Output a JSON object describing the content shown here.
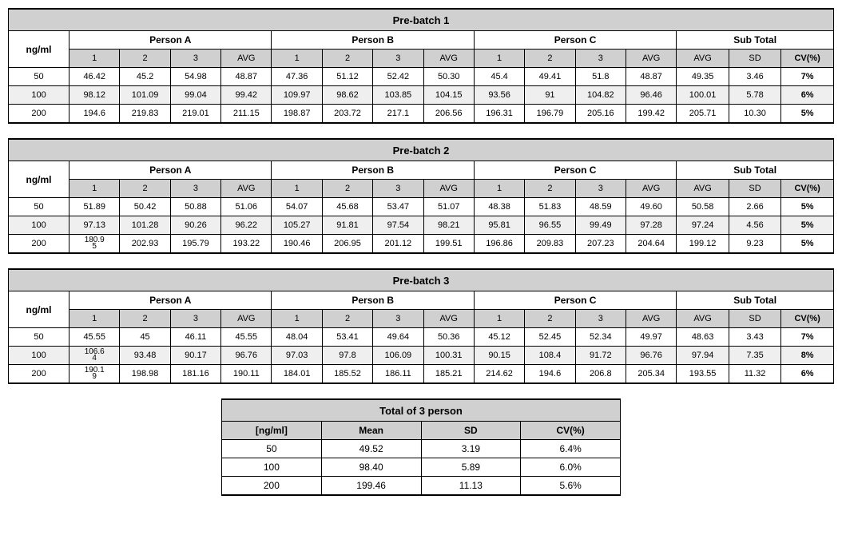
{
  "batches": [
    {
      "title": "Pre-batch 1",
      "rows": [
        {
          "ng": "50",
          "a": [
            "46.42",
            "45.2",
            "54.98",
            "48.87"
          ],
          "b": [
            "47.36",
            "51.12",
            "52.42",
            "50.30"
          ],
          "c": [
            "45.4",
            "49.41",
            "51.8",
            "48.87"
          ],
          "sub": [
            "49.35",
            "3.46",
            "7%"
          ],
          "shaded": false
        },
        {
          "ng": "100",
          "a": [
            "98.12",
            "101.09",
            "99.04",
            "99.42"
          ],
          "b": [
            "109.97",
            "98.62",
            "103.85",
            "104.15"
          ],
          "c": [
            "93.56",
            "91",
            "104.82",
            "96.46"
          ],
          "sub": [
            "100.01",
            "5.78",
            "6%"
          ],
          "shaded": true
        },
        {
          "ng": "200",
          "a": [
            "194.6",
            "219.83",
            "219.01",
            "211.15"
          ],
          "b": [
            "198.87",
            "203.72",
            "217.1",
            "206.56"
          ],
          "c": [
            "196.31",
            "196.79",
            "205.16",
            "199.42"
          ],
          "sub": [
            "205.71",
            "10.30",
            "5%"
          ],
          "shaded": false
        }
      ]
    },
    {
      "title": "Pre-batch 2",
      "rows": [
        {
          "ng": "50",
          "a": [
            "51.89",
            "50.42",
            "50.88",
            "51.06"
          ],
          "b": [
            "54.07",
            "45.68",
            "53.47",
            "51.07"
          ],
          "c": [
            "48.38",
            "51.83",
            "48.59",
            "49.60"
          ],
          "sub": [
            "50.58",
            "2.66",
            "5%"
          ],
          "shaded": false
        },
        {
          "ng": "100",
          "a": [
            "97.13",
            "101.28",
            "90.26",
            "96.22"
          ],
          "b": [
            "105.27",
            "91.81",
            "97.54",
            "98.21"
          ],
          "c": [
            "95.81",
            "96.55",
            "99.49",
            "97.28"
          ],
          "sub": [
            "97.24",
            "4.56",
            "5%"
          ],
          "shaded": true
        },
        {
          "ng": "200",
          "a": [
            "180.95",
            "202.93",
            "195.79",
            "193.22"
          ],
          "b": [
            "190.46",
            "206.95",
            "201.12",
            "199.51"
          ],
          "c": [
            "196.86",
            "209.83",
            "207.23",
            "204.64"
          ],
          "sub": [
            "199.12",
            "9.23",
            "5%"
          ],
          "shaded": false
        }
      ]
    },
    {
      "title": "Pre-batch 3",
      "rows": [
        {
          "ng": "50",
          "a": [
            "45.55",
            "45",
            "46.11",
            "45.55"
          ],
          "b": [
            "48.04",
            "53.41",
            "49.64",
            "50.36"
          ],
          "c": [
            "45.12",
            "52.45",
            "52.34",
            "49.97"
          ],
          "sub": [
            "48.63",
            "3.43",
            "7%"
          ],
          "shaded": false
        },
        {
          "ng": "100",
          "a": [
            "106.64",
            "93.48",
            "90.17",
            "96.76"
          ],
          "b": [
            "97.03",
            "97.8",
            "106.09",
            "100.31"
          ],
          "c": [
            "90.15",
            "108.4",
            "91.72",
            "96.76"
          ],
          "sub": [
            "97.94",
            "7.35",
            "8%"
          ],
          "shaded": true
        },
        {
          "ng": "200",
          "a": [
            "190.19",
            "198.98",
            "181.16",
            "190.11"
          ],
          "b": [
            "184.01",
            "185.52",
            "186.11",
            "185.21"
          ],
          "c": [
            "214.62",
            "194.6",
            "206.8",
            "205.34"
          ],
          "sub": [
            "193.55",
            "11.32",
            "6%"
          ],
          "shaded": false
        }
      ]
    }
  ],
  "labels": {
    "ngml": "ng/ml",
    "personA": "Person A",
    "personB": "Person B",
    "personC": "Person C",
    "subTotal": "Sub Total",
    "cols": [
      "1",
      "2",
      "3",
      "AVG"
    ],
    "subCols": [
      "AVG",
      "SD",
      "CV(%)"
    ]
  },
  "summary": {
    "title": "Total of 3 person",
    "headers": [
      "[ng/ml]",
      "Mean",
      "SD",
      "CV(%)"
    ],
    "rows": [
      [
        "50",
        "49.52",
        "3.19",
        "6.4%"
      ],
      [
        "100",
        "98.40",
        "5.89",
        "6.0%"
      ],
      [
        "200",
        "199.46",
        "11.13",
        "5.6%"
      ]
    ]
  }
}
